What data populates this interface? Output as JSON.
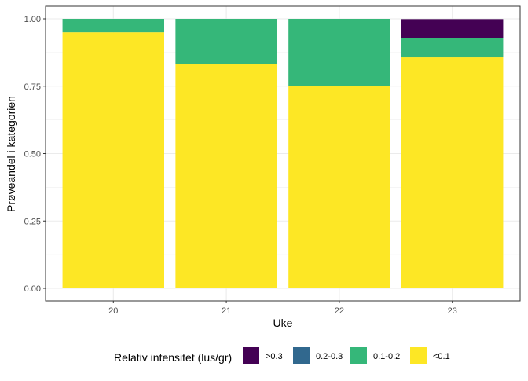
{
  "chart_data": {
    "type": "bar",
    "stacked": true,
    "title": "",
    "xlabel": "Uke",
    "ylabel": "Prøveandel i kategorien",
    "categories": [
      "20",
      "21",
      "22",
      "23"
    ],
    "ylim": [
      0,
      1
    ],
    "yticks": [
      "0.00",
      "0.25",
      "0.50",
      "0.75",
      "1.00"
    ],
    "ytick_values": [
      0,
      0.25,
      0.5,
      0.75,
      1.0
    ],
    "grid": true,
    "legend": {
      "title": "Relativ intensitet (lus/gr)",
      "placement": "bottom",
      "entries": [
        ">0.3",
        "0.2-0.3",
        "0.1-0.2",
        "<0.1"
      ]
    },
    "colors": {
      ">0.3": "#440154",
      "0.2-0.3": "#31688E",
      "0.1-0.2": "#35B779",
      "<0.1": "#FDE725"
    },
    "series": [
      {
        "name": "<0.1",
        "values": [
          0.95,
          0.833,
          0.75,
          0.857
        ]
      },
      {
        "name": "0.1-0.2",
        "values": [
          0.05,
          0.167,
          0.25,
          0.071
        ]
      },
      {
        "name": "0.2-0.3",
        "values": [
          0,
          0,
          0,
          0
        ]
      },
      {
        "name": ">0.3",
        "values": [
          0,
          0,
          0,
          0.071
        ]
      }
    ]
  }
}
